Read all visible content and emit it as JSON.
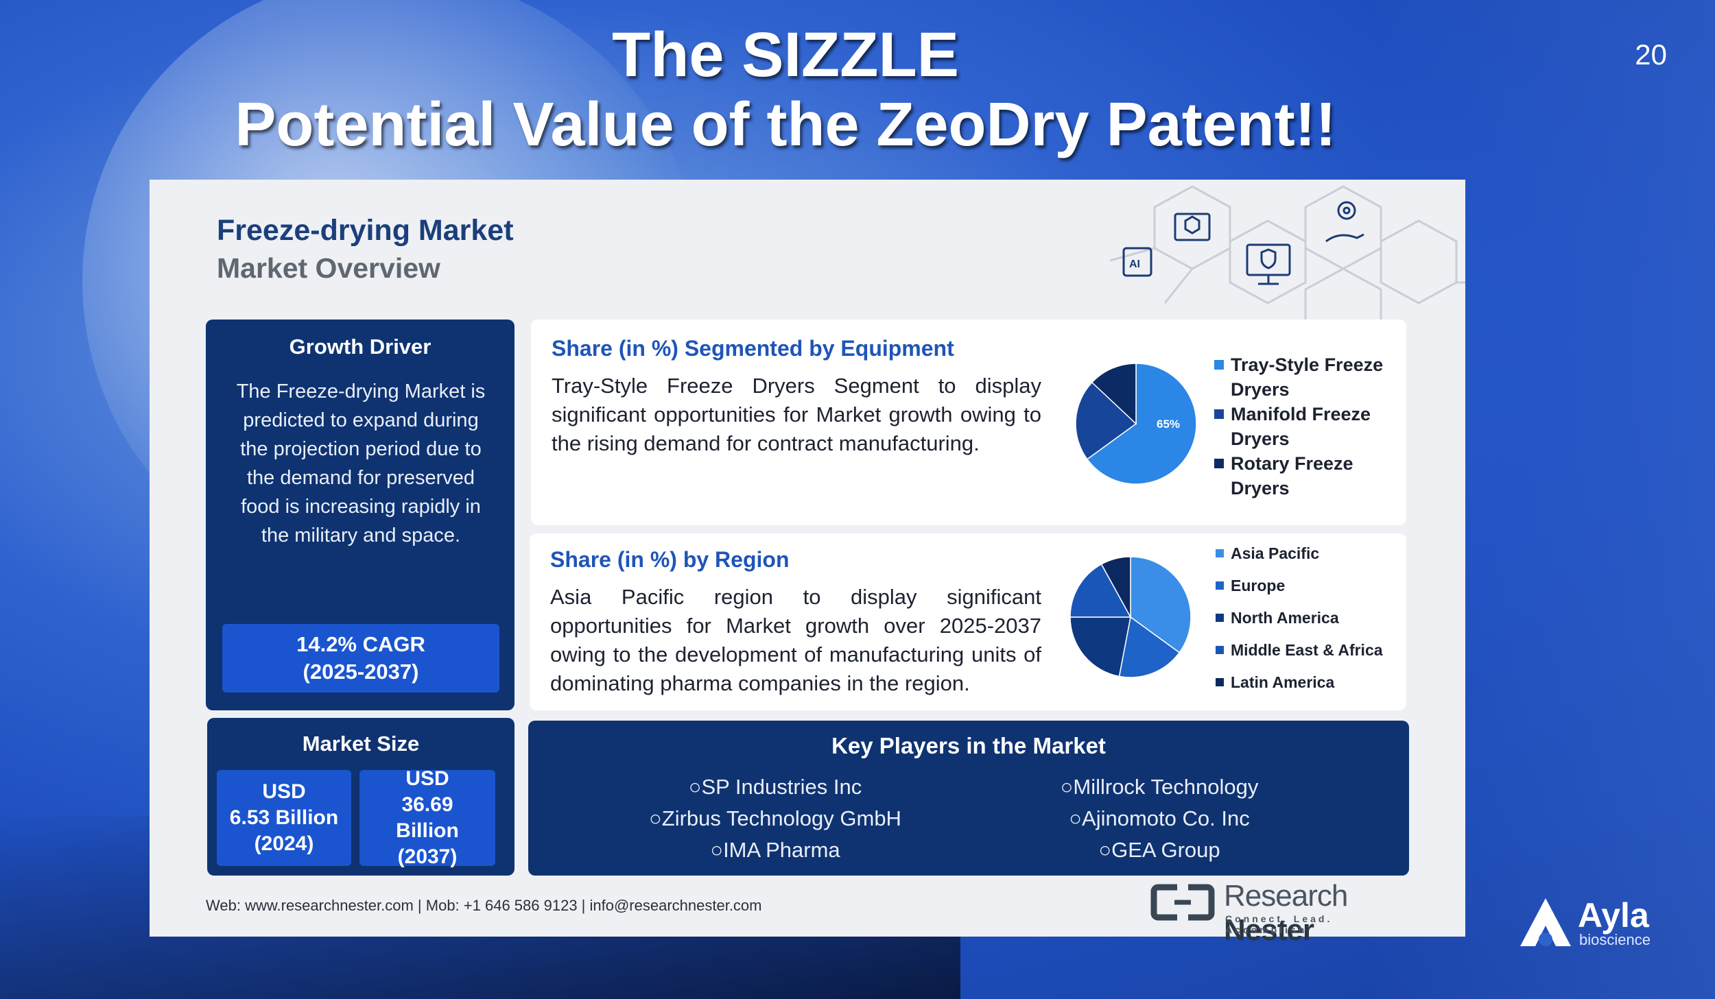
{
  "slide": {
    "title_line1": "The SIZZLE",
    "title_line2": "Potential Value of the ZeoDry Patent!!",
    "page_number": "20"
  },
  "infographic": {
    "title": "Freeze-drying Market",
    "subtitle": "Market Overview",
    "growth_driver": {
      "heading": "Growth Driver",
      "text": "The Freeze-drying Market is predicted to expand during the projection period due to the demand for preserved food is increasing rapidly in the military and space.",
      "cagr_line1": "14.2% CAGR",
      "cagr_line2": "(2025-2037)"
    },
    "market_size": {
      "heading": "Market Size",
      "left": {
        "l1": "USD",
        "l2": "6.53 Billion",
        "l3": "(2024)"
      },
      "right": {
        "l1": "USD",
        "l2": "36.69",
        "l3": "Billion",
        "l4": "(2037)"
      }
    },
    "equipment": {
      "heading": "Share (in %) Segmented by Equipment",
      "text": "Tray-Style Freeze Dryers Segment to display significant opportunities for Market growth owing to the rising demand for contract manufacturing.",
      "pie_label": "65%"
    },
    "region": {
      "heading": "Share (in %) by Region",
      "text": "Asia Pacific region to display significant opportunities for Market growth over 2025-2037 owing to the development of manufacturing units of dominating pharma companies in the region."
    },
    "key_players": {
      "heading": "Key Players in the Market",
      "col1": [
        "○SP Industries Inc",
        "○Zirbus Technology GmbH",
        "○IMA Pharma"
      ],
      "col2": [
        "○Millrock Technology",
        "○Ajinomoto Co. Inc",
        "○GEA Group"
      ]
    },
    "footer": "Web: www.researchnester.com  | Mob: +1 646 586 9123 | info@researchnester.com",
    "logo": {
      "word1": "Research",
      "word2": "Nester",
      "tagline": "Connect. Lead. Accomplish"
    }
  },
  "brand": {
    "name": "Ayla",
    "sub": "bioscience"
  },
  "chart_data": [
    {
      "type": "pie",
      "title": "Share (in %) Segmented by Equipment",
      "labels": [
        "Tray-Style Freeze Dryers",
        "Manifold Freeze Dryers",
        "Rotary Freeze Dryers"
      ],
      "values": [
        65,
        22,
        13
      ],
      "colors": [
        "#2b86e6",
        "#17459a",
        "#0c2a63"
      ],
      "legend": "right"
    },
    {
      "type": "pie",
      "title": "Share (in %) by Region",
      "labels": [
        "Asia Pacific",
        "Europe",
        "North America",
        "Middle East & Africa",
        "Latin America"
      ],
      "values": [
        35,
        18,
        22,
        17,
        8
      ],
      "colors": [
        "#3a8ee8",
        "#1d63c8",
        "#0e3880",
        "#1a55b8",
        "#0b2860"
      ],
      "legend": "right"
    }
  ],
  "legend_eq": [
    {
      "label": "Tray-Style Freeze Dryers",
      "color": "#2b86e6"
    },
    {
      "label": "Manifold Freeze Dryers",
      "color": "#17459a"
    },
    {
      "label": "Rotary Freeze Dryers",
      "color": "#0c2a63"
    }
  ],
  "legend_rg": [
    {
      "label": "Asia Pacific",
      "color": "#3a8ee8"
    },
    {
      "label": "Europe",
      "color": "#1d63c8"
    },
    {
      "label": "North America",
      "color": "#0e3880"
    },
    {
      "label": "Middle East & Africa",
      "color": "#1a55b8"
    },
    {
      "label": "Latin America",
      "color": "#0b2860"
    }
  ]
}
